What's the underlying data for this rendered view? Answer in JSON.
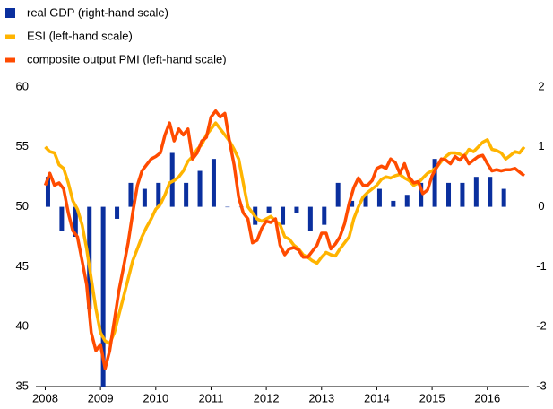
{
  "chart_data": {
    "type": "bar-line",
    "xlim": [
      2007.83,
      2016.75
    ],
    "xticks": [
      2008,
      2009,
      2010,
      2011,
      2012,
      2013,
      2014,
      2015,
      2016
    ],
    "ylim": [
      35,
      60
    ],
    "yticks": [
      35,
      40,
      45,
      50,
      55,
      60
    ],
    "y2lim": [
      -3,
      2
    ],
    "y2ticks": [
      -3,
      -2,
      -1,
      0,
      1,
      2
    ],
    "legend": "top-left",
    "series": [
      {
        "name": "real GDP (right-hand scale)",
        "type": "bar",
        "axis": "y2",
        "color": "#0a2f9e",
        "x": [
          2008,
          2008.25,
          2008.5,
          2008.75,
          2009,
          2009.25,
          2009.5,
          2009.75,
          2010,
          2010.25,
          2010.5,
          2010.75,
          2011,
          2011.25,
          2011.5,
          2011.75,
          2012,
          2012.25,
          2012.5,
          2012.75,
          2013,
          2013.25,
          2013.5,
          2013.75,
          2014,
          2014.25,
          2014.5,
          2014.75,
          2015,
          2015.25,
          2015.5,
          2015.75,
          2016,
          2016.25
        ],
        "values": [
          0.5,
          -0.4,
          -0.5,
          -1.7,
          -3.0,
          -0.2,
          0.4,
          0.3,
          0.4,
          0.9,
          0.4,
          0.6,
          0.8,
          0.0,
          0.0,
          -0.3,
          -0.1,
          -0.3,
          -0.1,
          -0.4,
          -0.3,
          0.4,
          0.1,
          0.2,
          0.3,
          0.1,
          0.2,
          0.4,
          0.8,
          0.4,
          0.4,
          0.5,
          0.5,
          0.3
        ]
      },
      {
        "name": "ESI (left-hand scale)",
        "type": "line",
        "color": "#ffb400",
        "x": [
          2008,
          2008.083,
          2008.167,
          2008.25,
          2008.333,
          2008.417,
          2008.5,
          2008.583,
          2008.667,
          2008.75,
          2008.833,
          2008.917,
          2009,
          2009.083,
          2009.167,
          2009.25,
          2009.333,
          2009.417,
          2009.5,
          2009.583,
          2009.667,
          2009.75,
          2009.833,
          2009.917,
          2010,
          2010.083,
          2010.167,
          2010.25,
          2010.333,
          2010.417,
          2010.5,
          2010.583,
          2010.667,
          2010.75,
          2010.833,
          2010.917,
          2011,
          2011.083,
          2011.167,
          2011.25,
          2011.333,
          2011.417,
          2011.5,
          2011.583,
          2011.667,
          2011.75,
          2011.833,
          2011.917,
          2012,
          2012.083,
          2012.167,
          2012.25,
          2012.333,
          2012.417,
          2012.5,
          2012.583,
          2012.667,
          2012.75,
          2012.833,
          2012.917,
          2013,
          2013.083,
          2013.167,
          2013.25,
          2013.333,
          2013.417,
          2013.5,
          2013.583,
          2013.667,
          2013.75,
          2013.833,
          2013.917,
          2014,
          2014.083,
          2014.167,
          2014.25,
          2014.333,
          2014.417,
          2014.5,
          2014.583,
          2014.667,
          2014.75,
          2014.833,
          2014.917,
          2015,
          2015.083,
          2015.167,
          2015.25,
          2015.333,
          2015.417,
          2015.5,
          2015.583,
          2015.667,
          2015.75,
          2015.833,
          2015.917,
          2016,
          2016.083,
          2016.167,
          2016.25,
          2016.333,
          2016.417,
          2016.5,
          2016.583,
          2016.667
        ],
        "values": [
          55,
          54.6,
          54.5,
          53.5,
          53.2,
          52,
          50.5,
          49.8,
          48.5,
          46.5,
          44,
          41.5,
          39.5,
          38.8,
          38.6,
          39.5,
          41,
          42.5,
          44,
          45.5,
          46.5,
          47.5,
          48.3,
          49,
          49.8,
          50.2,
          51,
          52,
          52.2,
          52.5,
          53,
          53.8,
          54.2,
          54.8,
          55.2,
          56,
          56.5,
          57,
          56.5,
          56,
          55.5,
          54.8,
          54,
          52,
          50,
          49.5,
          49,
          48.8,
          49,
          49.2,
          48.8,
          48.5,
          47.5,
          47.3,
          46.8,
          46.5,
          46,
          45.8,
          45.5,
          45.3,
          45.8,
          46.2,
          46,
          45.9,
          46.5,
          47,
          47.5,
          49,
          50,
          50.8,
          51.2,
          51.5,
          51.8,
          52.3,
          52.5,
          52.4,
          52.6,
          52.7,
          52.4,
          52.2,
          51.8,
          52,
          52.4,
          52.8,
          53,
          53.3,
          53.8,
          54.2,
          54.5,
          54.5,
          54.4,
          54.2,
          54.8,
          54.6,
          55,
          55.4,
          55.6,
          54.8,
          54.7,
          54.5,
          54,
          54.3,
          54.6,
          54.5,
          55
        ]
      },
      {
        "name": "composite output PMI (left-hand scale)",
        "type": "line",
        "color": "#ff4b00",
        "x": [
          2008,
          2008.083,
          2008.167,
          2008.25,
          2008.333,
          2008.417,
          2008.5,
          2008.583,
          2008.667,
          2008.75,
          2008.833,
          2008.917,
          2009,
          2009.083,
          2009.167,
          2009.25,
          2009.333,
          2009.417,
          2009.5,
          2009.583,
          2009.667,
          2009.75,
          2009.833,
          2009.917,
          2010,
          2010.083,
          2010.167,
          2010.25,
          2010.333,
          2010.417,
          2010.5,
          2010.583,
          2010.667,
          2010.75,
          2010.833,
          2010.917,
          2011,
          2011.083,
          2011.167,
          2011.25,
          2011.333,
          2011.417,
          2011.5,
          2011.583,
          2011.667,
          2011.75,
          2011.833,
          2011.917,
          2012,
          2012.083,
          2012.167,
          2012.25,
          2012.333,
          2012.417,
          2012.5,
          2012.583,
          2012.667,
          2012.75,
          2012.833,
          2012.917,
          2013,
          2013.083,
          2013.167,
          2013.25,
          2013.333,
          2013.417,
          2013.5,
          2013.583,
          2013.667,
          2013.75,
          2013.833,
          2013.917,
          2014,
          2014.083,
          2014.167,
          2014.25,
          2014.333,
          2014.417,
          2014.5,
          2014.583,
          2014.667,
          2014.75,
          2014.833,
          2014.917,
          2015,
          2015.083,
          2015.167,
          2015.25,
          2015.333,
          2015.417,
          2015.5,
          2015.583,
          2015.667,
          2015.75,
          2015.833,
          2015.917,
          2016,
          2016.083,
          2016.167,
          2016.25,
          2016.333,
          2016.417,
          2016.5,
          2016.583,
          2016.667
        ],
        "values": [
          51.8,
          52.8,
          51.8,
          52,
          51.5,
          49.5,
          48,
          47.5,
          45.5,
          43.5,
          39.5,
          38,
          38.5,
          36.5,
          38,
          40.5,
          43,
          45,
          47,
          49.5,
          51.8,
          53,
          53.5,
          54,
          54.2,
          54.5,
          56,
          57,
          55.5,
          56.5,
          56,
          56.5,
          54,
          54.5,
          55.5,
          55.8,
          57.5,
          58,
          57.5,
          57.8,
          55.5,
          53.5,
          50.8,
          49.5,
          49,
          47,
          47.2,
          48.2,
          48.8,
          48.7,
          49,
          46.8,
          46,
          46.5,
          46.6,
          46.4,
          45.8,
          45.8,
          46.3,
          46.8,
          47.8,
          47.8,
          46.5,
          46.9,
          47.5,
          48.6,
          50.3,
          51.6,
          52.4,
          51.8,
          51.8,
          52.2,
          53.2,
          53.4,
          53.2,
          54,
          53.7,
          52.8,
          53.6,
          52.5,
          52,
          52.1,
          51.1,
          51.4,
          52.6,
          53.3,
          54,
          53.9,
          53.6,
          54.2,
          53.9,
          54.3,
          53.6,
          53.9,
          54.2,
          54.3,
          53.6,
          53,
          53.1,
          53,
          53.1,
          53.1,
          53.2,
          52.9,
          52.6
        ]
      }
    ]
  }
}
